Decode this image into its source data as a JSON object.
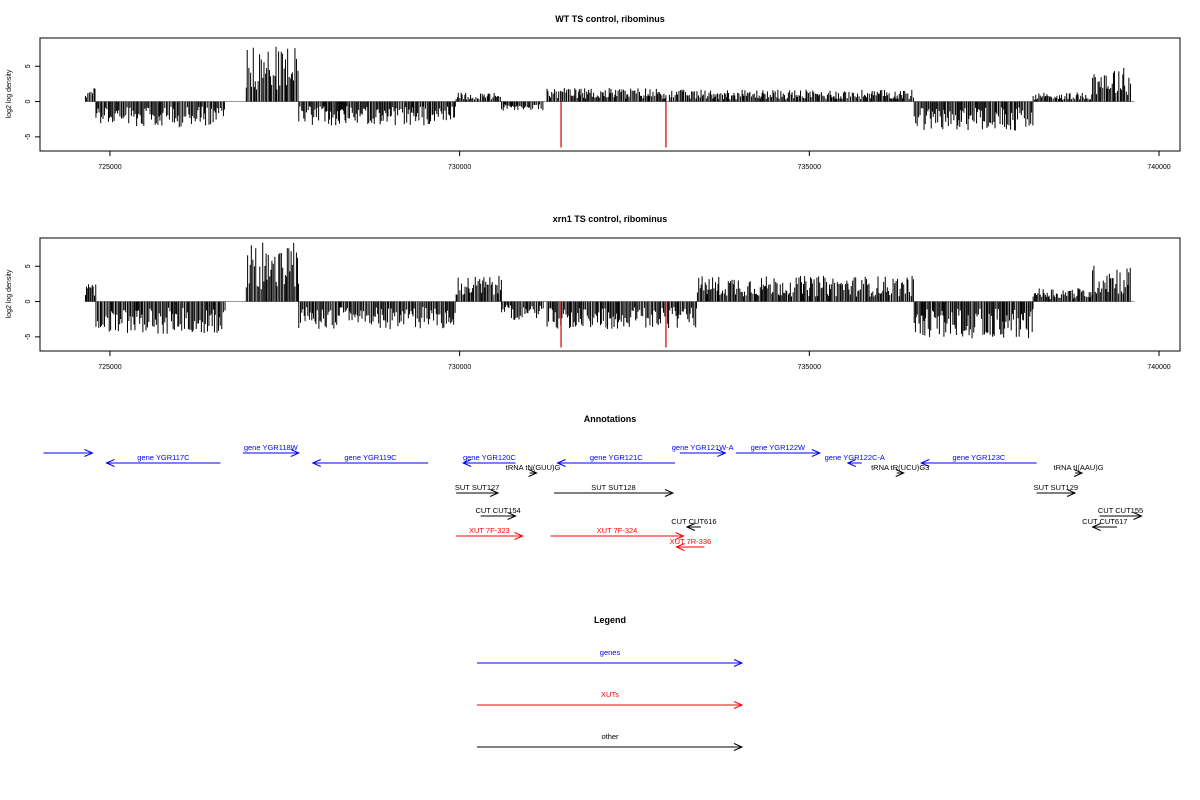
{
  "chart_data": [
    {
      "type": "bar",
      "title": "WT TS control, ribominus",
      "xlabel": "",
      "ylabel": "log2 log density",
      "xlim": [
        724000,
        740300
      ],
      "ylim": [
        -7,
        9
      ],
      "x_ticks": [
        725000,
        730000,
        735000,
        740000
      ],
      "x_tick_labels": [
        "725000",
        "730000",
        "735000",
        "740000"
      ],
      "y_ticks": [
        -5,
        0,
        5
      ],
      "y_tick_labels": [
        "-5",
        "0",
        "5"
      ],
      "series": [
        {
          "values_by_region": [
            {
              "x": [
                724650,
                724800
              ],
              "y": 1.5
            },
            {
              "x": [
                724800,
                726650
              ],
              "y": -2.8
            },
            {
              "x": [
                726950,
                727700
              ],
              "y": 6.0
            },
            {
              "x": [
                727700,
                729950
              ],
              "y": -2.6
            },
            {
              "x": [
                729950,
                730600
              ],
              "y": 1.0
            },
            {
              "x": [
                730600,
                731200
              ],
              "y": -1.0
            },
            {
              "x": [
                731250,
                732950
              ],
              "y": 1.5
            },
            {
              "x": [
                733000,
                736500
              ],
              "y": 1.3
            },
            {
              "x": [
                736500,
                738200
              ],
              "y": -3.2
            },
            {
              "x": [
                738200,
                739050
              ],
              "y": 1.0
            },
            {
              "x": [
                739050,
                739600
              ],
              "y": 3.8
            }
          ],
          "highlight_points": [
            {
              "x": 731450,
              "y": -6.5
            },
            {
              "x": 732950,
              "y": -6.5
            }
          ]
        }
      ]
    },
    {
      "type": "bar",
      "title": "xrn1 TS control, ribominus",
      "xlabel": "",
      "ylabel": "log2 log density",
      "xlim": [
        724000,
        740300
      ],
      "ylim": [
        -7,
        9
      ],
      "x_ticks": [
        725000,
        730000,
        735000,
        740000
      ],
      "x_tick_labels": [
        "725000",
        "730000",
        "735000",
        "740000"
      ],
      "y_ticks": [
        -5,
        0,
        5
      ],
      "y_tick_labels": [
        "-5",
        "0",
        "5"
      ],
      "series": [
        {
          "values_by_region": [
            {
              "x": [
                724650,
                724800
              ],
              "y": 2.0
            },
            {
              "x": [
                724800,
                726650
              ],
              "y": -3.5
            },
            {
              "x": [
                726950,
                727700
              ],
              "y": 6.5
            },
            {
              "x": [
                727700,
                729950
              ],
              "y": -3.0
            },
            {
              "x": [
                729950,
                730600
              ],
              "y": 2.8
            },
            {
              "x": [
                730600,
                731200
              ],
              "y": -2.0
            },
            {
              "x": [
                731250,
                733400
              ],
              "y": -3.0
            },
            {
              "x": [
                733400,
                736500
              ],
              "y": 2.8
            },
            {
              "x": [
                736500,
                738200
              ],
              "y": -4.0
            },
            {
              "x": [
                738200,
                739050
              ],
              "y": 1.5
            },
            {
              "x": [
                739050,
                739600
              ],
              "y": 4.0
            }
          ],
          "highlight_points": [
            {
              "x": 731450,
              "y": -6.5
            },
            {
              "x": 732950,
              "y": -6.5
            }
          ]
        }
      ]
    }
  ],
  "annotations": {
    "title": "Annotations",
    "items": [
      {
        "label": "",
        "category": "genes",
        "start": 724050,
        "end": 724750,
        "dir": "+",
        "row": 0
      },
      {
        "label": "gene YGR117C",
        "category": "genes",
        "start": 724950,
        "end": 726580,
        "dir": "-",
        "row": 1
      },
      {
        "label": "gene YGR118W",
        "category": "genes",
        "start": 726900,
        "end": 727700,
        "dir": "+",
        "row": 0
      },
      {
        "label": "gene YGR119C",
        "category": "genes",
        "start": 727900,
        "end": 729550,
        "dir": "-",
        "row": 1
      },
      {
        "label": "gene YGR120C",
        "category": "genes",
        "start": 730050,
        "end": 730800,
        "dir": "-",
        "row": 1
      },
      {
        "label": "gene YGR121C",
        "category": "genes",
        "start": 731400,
        "end": 733080,
        "dir": "-",
        "row": 1
      },
      {
        "label": "gene YGR121W-A",
        "category": "genes",
        "start": 733150,
        "end": 733800,
        "dir": "+",
        "row": 0
      },
      {
        "label": "gene YGR122W",
        "category": "genes",
        "start": 733950,
        "end": 735150,
        "dir": "+",
        "row": 0
      },
      {
        "label": "gene YGR122C-A",
        "category": "genes",
        "start": 735550,
        "end": 735750,
        "dir": "-",
        "row": 1
      },
      {
        "label": "gene YGR123C",
        "category": "genes",
        "start": 736600,
        "end": 738250,
        "dir": "-",
        "row": 1
      },
      {
        "label": "tRNA tN(GUU)G",
        "category": "other",
        "start": 731000,
        "end": 731100,
        "dir": "+",
        "row": 2
      },
      {
        "label": "tRNA tR(UCU)G3",
        "category": "other",
        "start": 736250,
        "end": 736350,
        "dir": "+",
        "row": 2
      },
      {
        "label": "tRNA tI(AAU)G",
        "category": "other",
        "start": 738800,
        "end": 738900,
        "dir": "+",
        "row": 2
      },
      {
        "label": "SUT SUT127",
        "category": "other",
        "start": 729950,
        "end": 730550,
        "dir": "+",
        "row": 3
      },
      {
        "label": "SUT SUT128",
        "category": "other",
        "start": 731350,
        "end": 733050,
        "dir": "+",
        "row": 3
      },
      {
        "label": "SUT SUT129",
        "category": "other",
        "start": 738250,
        "end": 738800,
        "dir": "+",
        "row": 3
      },
      {
        "label": "CUT CUT154",
        "category": "other",
        "start": 730300,
        "end": 730800,
        "dir": "+",
        "row": 4
      },
      {
        "label": "CUT CUT616",
        "category": "other",
        "start": 733250,
        "end": 733450,
        "dir": "-",
        "row": 5
      },
      {
        "label": "CUT CUT155",
        "category": "other",
        "start": 739150,
        "end": 739750,
        "dir": "+",
        "row": 4
      },
      {
        "label": "CUT CUT617",
        "category": "other",
        "start": 739050,
        "end": 739400,
        "dir": "-",
        "row": 5
      },
      {
        "label": "XUT 7F-323",
        "category": "XUTs",
        "start": 729950,
        "end": 730900,
        "dir": "+",
        "row": 6
      },
      {
        "label": "XUT 7F-324",
        "category": "XUTs",
        "start": 731300,
        "end": 733200,
        "dir": "+",
        "row": 6
      },
      {
        "label": "XUT 7R-336",
        "category": "XUTs",
        "start": 733100,
        "end": 733500,
        "dir": "-",
        "row": 7
      }
    ]
  },
  "legend": {
    "title": "Legend",
    "items": [
      {
        "label": "genes",
        "color": "#0000ff"
      },
      {
        "label": "XUTs",
        "color": "#ff0000"
      },
      {
        "label": "other",
        "color": "#000000"
      }
    ]
  },
  "colors": {
    "genes": "#0000ff",
    "XUTs": "#ff0000",
    "other": "#000000",
    "highlight": "#cc0000"
  }
}
